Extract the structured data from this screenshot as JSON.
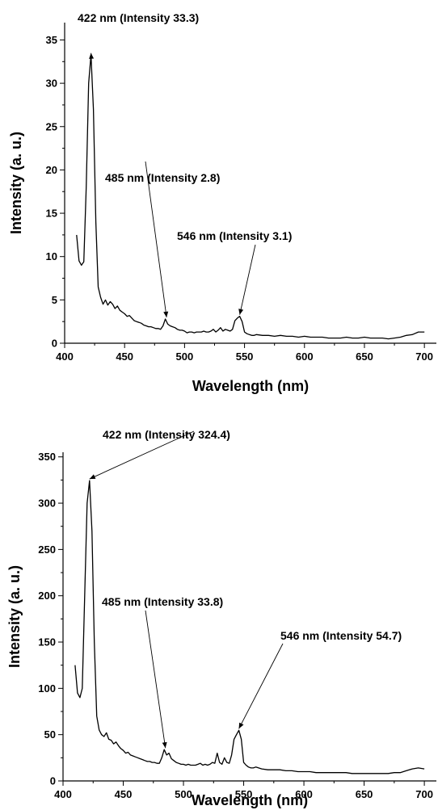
{
  "chart_data": [
    {
      "type": "line",
      "xlabel": "Wavelength (nm)",
      "ylabel": "Intensity (a. u.)",
      "xlim": [
        400,
        710
      ],
      "ylim": [
        0,
        37
      ],
      "xticks": [
        400,
        450,
        500,
        550,
        600,
        650,
        700
      ],
      "yticks": [
        0,
        5,
        10,
        15,
        20,
        25,
        30,
        35
      ],
      "grid": false,
      "series": [
        {
          "x": [
            410,
            412,
            414,
            416,
            418,
            420,
            422,
            424,
            426,
            428,
            430,
            432,
            434,
            436,
            438,
            440,
            442,
            444,
            446,
            448,
            450,
            452,
            454,
            456,
            458,
            460,
            462,
            464,
            466,
            468,
            470,
            472,
            474,
            476,
            478,
            480,
            482,
            484,
            486,
            488,
            490,
            492,
            494,
            496,
            498,
            500,
            502,
            504,
            506,
            508,
            510,
            512,
            514,
            516,
            518,
            520,
            522,
            524,
            526,
            528,
            530,
            532,
            534,
            536,
            538,
            540,
            542,
            544,
            546,
            548,
            550,
            552,
            554,
            556,
            558,
            560,
            565,
            570,
            575,
            580,
            585,
            590,
            595,
            600,
            605,
            610,
            615,
            620,
            625,
            630,
            635,
            640,
            645,
            650,
            655,
            660,
            665,
            670,
            675,
            680,
            685,
            690,
            695,
            700
          ],
          "y": [
            12.5,
            9.5,
            9.0,
            9.4,
            18.0,
            30.0,
            33.3,
            27.0,
            14.0,
            6.5,
            5.3,
            4.5,
            5.0,
            4.4,
            4.8,
            4.5,
            4.0,
            4.3,
            3.8,
            3.6,
            3.4,
            3.1,
            3.2,
            2.9,
            2.6,
            2.5,
            2.4,
            2.3,
            2.1,
            2.0,
            1.9,
            1.9,
            1.8,
            1.7,
            1.7,
            1.6,
            2.0,
            2.8,
            2.2,
            2.0,
            1.9,
            1.8,
            1.6,
            1.5,
            1.5,
            1.4,
            1.2,
            1.3,
            1.3,
            1.2,
            1.3,
            1.3,
            1.3,
            1.4,
            1.3,
            1.3,
            1.4,
            1.6,
            1.3,
            1.5,
            1.8,
            1.4,
            1.6,
            1.5,
            1.4,
            1.6,
            2.6,
            2.9,
            3.1,
            2.5,
            1.3,
            1.1,
            1.0,
            0.9,
            0.9,
            1.0,
            0.9,
            0.9,
            0.8,
            0.9,
            0.8,
            0.8,
            0.7,
            0.8,
            0.7,
            0.7,
            0.7,
            0.6,
            0.6,
            0.6,
            0.7,
            0.6,
            0.6,
            0.7,
            0.6,
            0.6,
            0.6,
            0.5,
            0.6,
            0.7,
            0.9,
            1.0,
            1.3,
            1.3
          ]
        }
      ],
      "annotations": [
        {
          "text": "422 nm (Intensity 33.3)",
          "x": 422,
          "y": 33.3
        },
        {
          "text": "485 nm (Intensity 2.8)",
          "x": 485,
          "y": 2.8
        },
        {
          "text": "546 nm (Intensity 3.1)",
          "x": 546,
          "y": 3.1
        }
      ]
    },
    {
      "type": "line",
      "xlabel": "Wavelength (nm)",
      "ylabel": "Intensity (a. u.)",
      "xlim": [
        400,
        710
      ],
      "ylim": [
        0,
        355
      ],
      "xticks": [
        400,
        450,
        500,
        550,
        600,
        650,
        700
      ],
      "yticks": [
        0,
        50,
        100,
        150,
        200,
        250,
        300,
        350
      ],
      "grid": false,
      "series": [
        {
          "x": [
            410,
            412,
            414,
            416,
            418,
            420,
            422,
            424,
            426,
            428,
            430,
            432,
            434,
            436,
            438,
            440,
            442,
            444,
            446,
            448,
            450,
            452,
            454,
            456,
            458,
            460,
            462,
            464,
            466,
            468,
            470,
            472,
            474,
            476,
            478,
            480,
            482,
            484,
            486,
            488,
            490,
            492,
            494,
            496,
            498,
            500,
            502,
            504,
            506,
            508,
            510,
            512,
            514,
            516,
            518,
            520,
            522,
            524,
            526,
            528,
            530,
            532,
            534,
            536,
            538,
            540,
            542,
            544,
            546,
            548,
            550,
            552,
            554,
            556,
            558,
            560,
            565,
            570,
            575,
            580,
            585,
            590,
            595,
            600,
            605,
            610,
            615,
            620,
            625,
            630,
            635,
            640,
            645,
            650,
            655,
            660,
            665,
            670,
            675,
            680,
            685,
            690,
            695,
            700
          ],
          "y": [
            125,
            95,
            90,
            100,
            200,
            300,
            324.4,
            270,
            150,
            70,
            55,
            50,
            48,
            52,
            45,
            44,
            40,
            42,
            38,
            35,
            33,
            30,
            31,
            28,
            27,
            26,
            25,
            24,
            23,
            22,
            21,
            21,
            20,
            20,
            19,
            19,
            25,
            33.8,
            28,
            30,
            24,
            22,
            20,
            19,
            18,
            18,
            17,
            18,
            17,
            17,
            17,
            18,
            19,
            17,
            18,
            17,
            18,
            20,
            19,
            30,
            20,
            18,
            25,
            20,
            19,
            28,
            45,
            50,
            54.7,
            45,
            20,
            17,
            15,
            14,
            14,
            15,
            13,
            12,
            12,
            12,
            11,
            11,
            10,
            10,
            10,
            9,
            9,
            9,
            9,
            9,
            9,
            8,
            8,
            8,
            8,
            8,
            8,
            8,
            9,
            9,
            11,
            13,
            14,
            13
          ]
        }
      ],
      "annotations": [
        {
          "text": "422 nm (Intensity 324.4)",
          "x": 422,
          "y": 324.4
        },
        {
          "text": "485 nm (Intensity 33.8)",
          "x": 485,
          "y": 33.8
        },
        {
          "text": "546 nm (Intensity 54.7)",
          "x": 546,
          "y": 54.7
        }
      ]
    }
  ]
}
